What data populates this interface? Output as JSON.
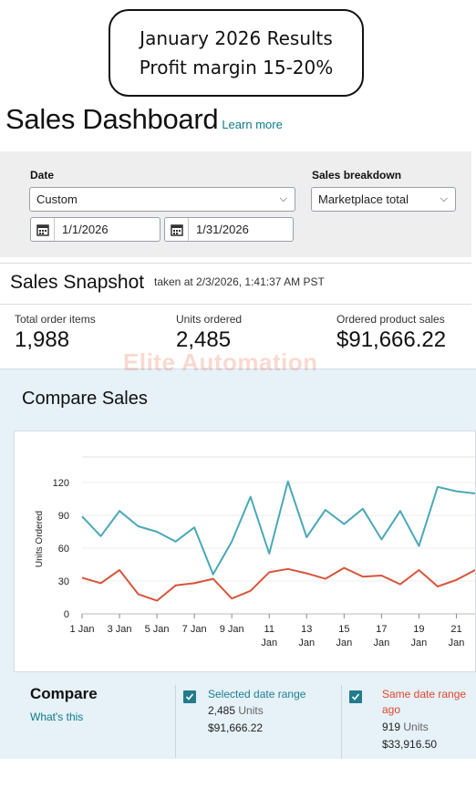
{
  "callout": {
    "line1": "January 2026 Results",
    "line2": "Profit margin 15-20%"
  },
  "header": {
    "title": "Sales Dashboard",
    "learn_more": "Learn more"
  },
  "filters": {
    "date_label": "Date",
    "date_select": "Custom",
    "start_date": "1/1/2026",
    "end_date": "1/31/2026",
    "breakdown_label": "Sales breakdown",
    "breakdown_select": "Marketplace total"
  },
  "snapshot": {
    "title": "Sales Snapshot",
    "taken": "taken at 2/3/2026, 1:41:37 AM PST",
    "metrics": [
      {
        "label": "Total order items",
        "value": "1,988"
      },
      {
        "label": "Units ordered",
        "value": "2,485"
      },
      {
        "label": "Ordered product sales",
        "value": "$91,666.22"
      }
    ]
  },
  "watermark": "Elite Automation",
  "compare": {
    "title": "Compare Sales",
    "heading": "Compare",
    "whats_this": "What's this",
    "selected": {
      "label": "Selected date range",
      "units": "2,485",
      "units_word": "Units",
      "amount": "$91,666.22",
      "color": "#1f7f92"
    },
    "same": {
      "label_line1": "Same date range",
      "label_line2": "ago",
      "units": "919",
      "units_word": "Units",
      "amount": "$33,916.50",
      "color": "#e0472a"
    }
  },
  "chart_data": {
    "type": "line",
    "ylabel": "Units Ordered",
    "xlabel": "",
    "ylim": [
      0,
      120
    ],
    "yticks": [
      0,
      30,
      60,
      90,
      120
    ],
    "x": [
      1,
      2,
      3,
      4,
      5,
      6,
      7,
      8,
      9,
      10,
      11,
      12,
      13,
      14,
      15,
      16,
      17,
      18,
      19,
      20,
      21,
      22
    ],
    "xticks": [
      {
        "x": 1,
        "l1": "1 Jan",
        "l2": ""
      },
      {
        "x": 3,
        "l1": "3 Jan",
        "l2": ""
      },
      {
        "x": 5,
        "l1": "5 Jan",
        "l2": ""
      },
      {
        "x": 7,
        "l1": "7 Jan",
        "l2": ""
      },
      {
        "x": 9,
        "l1": "9 Jan",
        "l2": ""
      },
      {
        "x": 11,
        "l1": "11",
        "l2": "Jan"
      },
      {
        "x": 13,
        "l1": "13",
        "l2": "Jan"
      },
      {
        "x": 15,
        "l1": "15",
        "l2": "Jan"
      },
      {
        "x": 17,
        "l1": "17",
        "l2": "Jan"
      },
      {
        "x": 19,
        "l1": "19",
        "l2": "Jan"
      },
      {
        "x": 21,
        "l1": "21",
        "l2": "Jan"
      }
    ],
    "series": [
      {
        "name": "Selected date range",
        "color": "#4aa8b8",
        "values": [
          89,
          71,
          94,
          80,
          75,
          66,
          79,
          36,
          66,
          107,
          55,
          121,
          70,
          95,
          82,
          96,
          68,
          94,
          62,
          116,
          112,
          110
        ]
      },
      {
        "name": "Same date range ago",
        "color": "#d6553b",
        "values": [
          33,
          28,
          40,
          18,
          12,
          26,
          28,
          32,
          14,
          21,
          38,
          41,
          37,
          32,
          42,
          34,
          35,
          27,
          40,
          25,
          31,
          40
        ]
      }
    ]
  }
}
